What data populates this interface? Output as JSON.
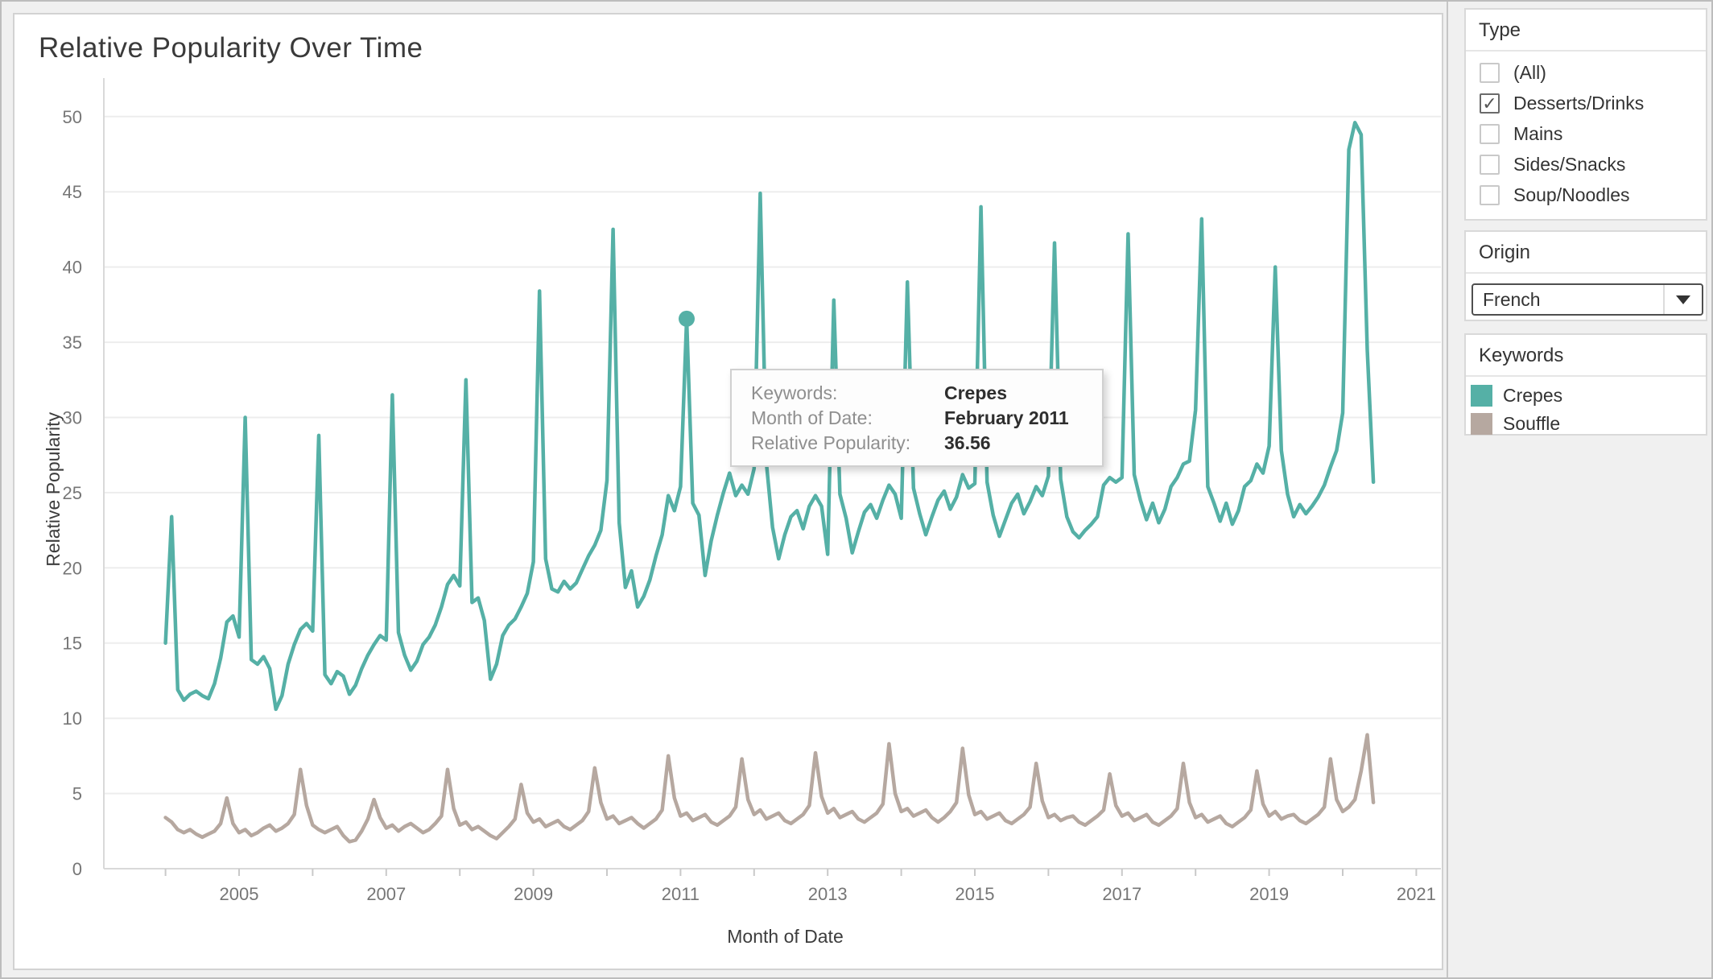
{
  "chart_data": {
    "type": "line",
    "title": "Relative Popularity Over Time",
    "xlabel": "Month of Date",
    "ylabel": "Relative Popularity",
    "x_start_year": 2004,
    "x_start_month": 1,
    "x_interval": "monthly",
    "ylim": [
      0,
      50
    ],
    "grid": "horizontal",
    "y_ticks": [
      0,
      5,
      10,
      15,
      20,
      25,
      30,
      35,
      40,
      45,
      50
    ],
    "x_axis_tick_years": [
      2004,
      2005,
      2006,
      2007,
      2008,
      2009,
      2010,
      2011,
      2012,
      2013,
      2014,
      2015,
      2016,
      2017,
      2018,
      2019,
      2020,
      2021
    ],
    "x_axis_label_years": [
      2005,
      2007,
      2009,
      2011,
      2013,
      2015,
      2017,
      2019,
      2021
    ],
    "highlight_point": {
      "series": "Crepes",
      "year": 2011,
      "month": 2,
      "value": 36.56
    },
    "series": [
      {
        "name": "Crepes",
        "color": "#55b0a6",
        "values": [
          15.0,
          23.4,
          11.9,
          11.2,
          11.6,
          11.8,
          11.5,
          11.3,
          12.3,
          14.0,
          16.4,
          16.8,
          15.4,
          30.0,
          13.9,
          13.6,
          14.1,
          13.3,
          10.6,
          11.5,
          13.6,
          14.9,
          15.9,
          16.3,
          15.8,
          28.8,
          12.9,
          12.3,
          13.1,
          12.8,
          11.6,
          12.2,
          13.3,
          14.2,
          14.9,
          15.5,
          15.2,
          31.5,
          15.7,
          14.2,
          13.2,
          13.8,
          14.9,
          15.4,
          16.2,
          17.4,
          18.9,
          19.5,
          18.8,
          32.5,
          17.7,
          18.0,
          16.5,
          12.6,
          13.6,
          15.5,
          16.2,
          16.6,
          17.4,
          18.3,
          20.4,
          38.4,
          20.6,
          18.6,
          18.4,
          19.1,
          18.6,
          19.0,
          19.9,
          20.8,
          21.5,
          22.5,
          25.8,
          42.5,
          23.0,
          18.7,
          19.8,
          17.4,
          18.1,
          19.2,
          20.8,
          22.2,
          24.8,
          23.8,
          25.4,
          36.56,
          24.3,
          23.5,
          19.5,
          21.8,
          23.5,
          25.0,
          26.3,
          24.8,
          25.5,
          24.9,
          26.6,
          44.9,
          27.0,
          22.7,
          20.6,
          22.2,
          23.4,
          23.8,
          22.6,
          24.1,
          24.8,
          24.1,
          20.9,
          37.8,
          24.9,
          23.3,
          21.0,
          22.4,
          23.7,
          24.2,
          23.3,
          24.5,
          25.5,
          24.9,
          23.3,
          39.0,
          25.3,
          23.6,
          22.2,
          23.4,
          24.5,
          25.1,
          23.9,
          24.7,
          26.2,
          25.3,
          25.6,
          44.0,
          25.7,
          23.5,
          22.1,
          23.2,
          24.3,
          24.9,
          23.6,
          24.4,
          25.4,
          24.8,
          26.1,
          41.6,
          25.9,
          23.4,
          22.4,
          22.0,
          22.5,
          22.9,
          23.4,
          25.5,
          26.0,
          25.7,
          26.0,
          42.2,
          26.2,
          24.5,
          23.2,
          24.3,
          23.0,
          23.9,
          25.4,
          26.0,
          26.9,
          27.1,
          30.5,
          43.2,
          25.4,
          24.3,
          23.1,
          24.3,
          22.9,
          23.8,
          25.4,
          25.8,
          26.9,
          26.3,
          28.1,
          40.0,
          27.8,
          24.9,
          23.4,
          24.2,
          23.6,
          24.1,
          24.7,
          25.5,
          26.7,
          27.8,
          30.3,
          47.8,
          49.6,
          48.8,
          34.5,
          25.7
        ]
      },
      {
        "name": "Souffle",
        "color": "#b6a8a0",
        "values": [
          3.4,
          3.1,
          2.6,
          2.4,
          2.6,
          2.3,
          2.1,
          2.3,
          2.5,
          3.0,
          4.7,
          3.0,
          2.4,
          2.6,
          2.2,
          2.4,
          2.7,
          2.9,
          2.5,
          2.7,
          3.0,
          3.6,
          6.6,
          4.2,
          2.9,
          2.6,
          2.4,
          2.6,
          2.8,
          2.2,
          1.8,
          1.9,
          2.5,
          3.3,
          4.6,
          3.4,
          2.7,
          2.9,
          2.5,
          2.8,
          3.0,
          2.7,
          2.4,
          2.6,
          3.0,
          3.5,
          6.6,
          4.0,
          2.9,
          3.1,
          2.6,
          2.8,
          2.5,
          2.2,
          2.0,
          2.4,
          2.8,
          3.3,
          5.6,
          3.7,
          3.1,
          3.3,
          2.8,
          3.0,
          3.2,
          2.8,
          2.6,
          2.9,
          3.2,
          3.8,
          6.7,
          4.4,
          3.3,
          3.5,
          3.0,
          3.2,
          3.4,
          3.0,
          2.7,
          3.0,
          3.3,
          3.9,
          7.5,
          4.7,
          3.5,
          3.7,
          3.2,
          3.4,
          3.6,
          3.1,
          2.9,
          3.2,
          3.5,
          4.1,
          7.3,
          4.6,
          3.6,
          3.9,
          3.3,
          3.5,
          3.7,
          3.2,
          3.0,
          3.3,
          3.6,
          4.2,
          7.7,
          4.8,
          3.7,
          4.0,
          3.4,
          3.6,
          3.8,
          3.3,
          3.1,
          3.4,
          3.7,
          4.3,
          8.3,
          5.0,
          3.8,
          4.0,
          3.5,
          3.7,
          3.9,
          3.4,
          3.1,
          3.4,
          3.8,
          4.4,
          8.0,
          4.9,
          3.6,
          3.8,
          3.3,
          3.5,
          3.7,
          3.2,
          3.0,
          3.3,
          3.6,
          4.1,
          7.0,
          4.5,
          3.4,
          3.6,
          3.2,
          3.4,
          3.5,
          3.1,
          2.9,
          3.2,
          3.5,
          3.9,
          6.3,
          4.2,
          3.5,
          3.7,
          3.2,
          3.4,
          3.6,
          3.1,
          2.9,
          3.2,
          3.5,
          4.0,
          7.0,
          4.4,
          3.4,
          3.6,
          3.1,
          3.3,
          3.5,
          3.0,
          2.8,
          3.1,
          3.4,
          3.9,
          6.5,
          4.3,
          3.5,
          3.8,
          3.3,
          3.5,
          3.6,
          3.2,
          3.0,
          3.3,
          3.6,
          4.1,
          7.3,
          4.6,
          3.8,
          4.1,
          4.6,
          6.5,
          8.9,
          4.4
        ]
      }
    ]
  },
  "tooltip": {
    "rows": [
      {
        "label": "Keywords:",
        "value": "Crepes"
      },
      {
        "label": "Month of Date:",
        "value": "February 2011"
      },
      {
        "label": "Relative Popularity:",
        "value": "36.56"
      }
    ]
  },
  "sidebar": {
    "type_filter": {
      "title": "Type",
      "options": [
        {
          "label": "(All)",
          "checked": false
        },
        {
          "label": "Desserts/Drinks",
          "checked": true
        },
        {
          "label": "Mains",
          "checked": false
        },
        {
          "label": "Sides/Snacks",
          "checked": false
        },
        {
          "label": "Soup/Noodles",
          "checked": false
        }
      ]
    },
    "origin_filter": {
      "title": "Origin",
      "selected": "French"
    },
    "keywords_legend": {
      "title": "Keywords",
      "items": [
        {
          "label": "Crepes",
          "color": "#55b0a6"
        },
        {
          "label": "Souffle",
          "color": "#b6a8a0"
        }
      ]
    }
  }
}
